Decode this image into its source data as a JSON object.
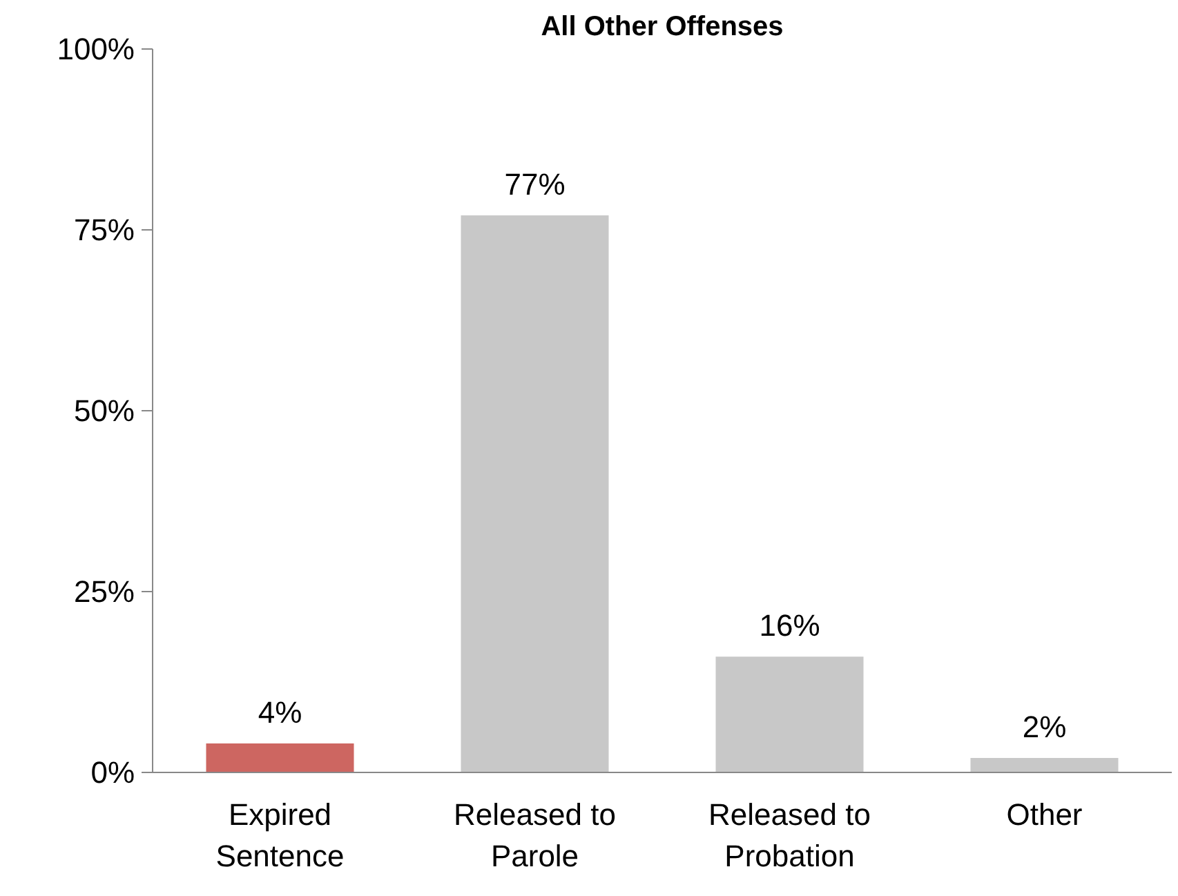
{
  "chart_data": {
    "type": "bar",
    "title": "All Other Offenses",
    "categories": [
      "Expired\nSentence",
      "Released to\nParole",
      "Released to\nProbation",
      "Other"
    ],
    "values": [
      4,
      77,
      16,
      2
    ],
    "colors": [
      "#cd6661",
      "#c8c8c8",
      "#c8c8c8",
      "#c8c8c8"
    ],
    "value_labels": [
      "4%",
      "77%",
      "16%",
      "2%"
    ],
    "ylim": [
      0,
      100
    ],
    "yticks": [
      {
        "value": 0,
        "label": "0%"
      },
      {
        "value": 25,
        "label": "25%"
      },
      {
        "value": 50,
        "label": "50%"
      },
      {
        "value": 75,
        "label": "75%"
      },
      {
        "value": 100,
        "label": "100%"
      }
    ],
    "grid": false
  }
}
